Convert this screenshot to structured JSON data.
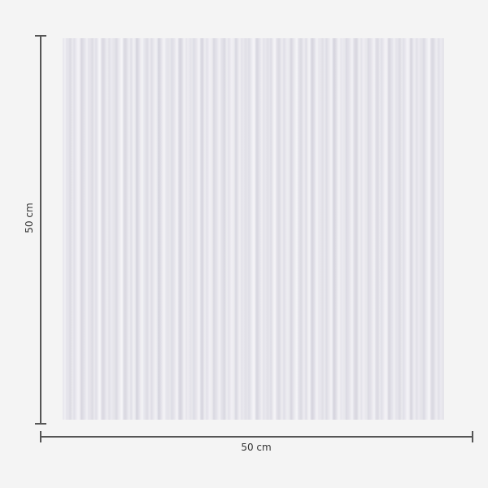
{
  "product": {
    "name": "striped-wall-panel",
    "colors": {
      "background": "#f4f4f4",
      "panel": "#e4e3ea",
      "dimension_line": "#555555"
    }
  },
  "dimensions": {
    "height_label": "50 cm",
    "width_label": "50 cm"
  }
}
